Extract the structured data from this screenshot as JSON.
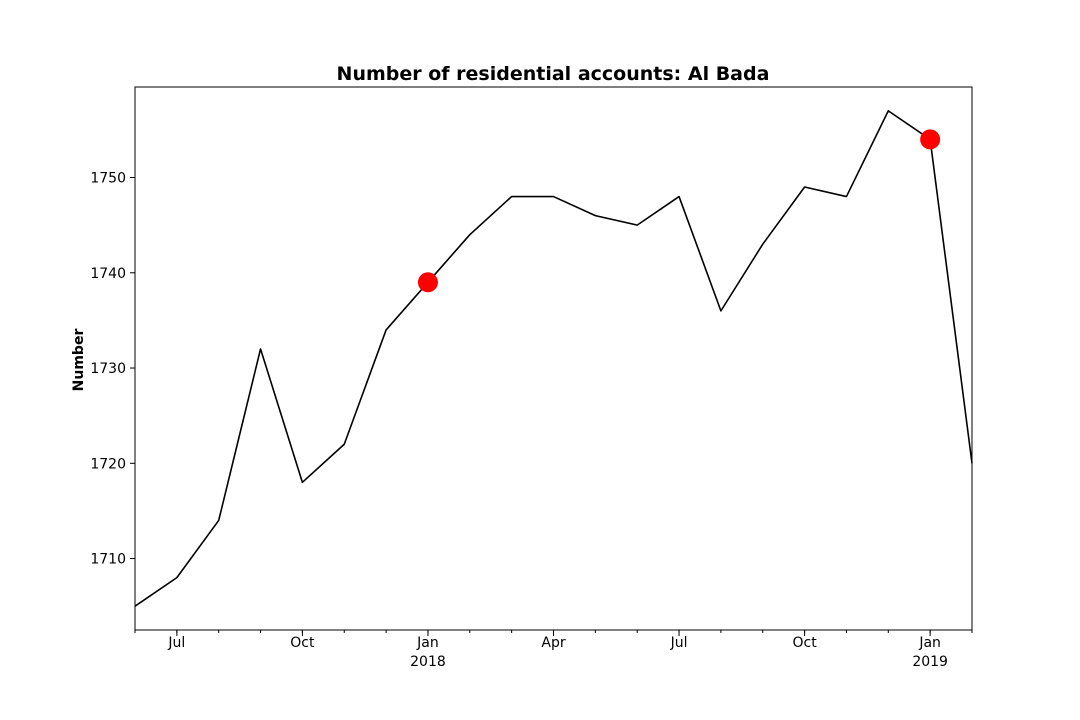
{
  "chart_data": {
    "type": "line",
    "title": "Number of residential accounts: Al Bada",
    "xlabel": "",
    "ylabel": "Number",
    "x": [
      "2017-06",
      "2017-07",
      "2017-08",
      "2017-09",
      "2017-10",
      "2017-11",
      "2017-12",
      "2018-01",
      "2018-02",
      "2018-03",
      "2018-04",
      "2018-05",
      "2018-06",
      "2018-07",
      "2018-08",
      "2018-09",
      "2018-10",
      "2018-11",
      "2018-12",
      "2019-01",
      "2019-02"
    ],
    "series": [
      {
        "values": [
          1705,
          1708,
          1714,
          1732,
          1718,
          1722,
          1734,
          1739,
          1744,
          1748,
          1748,
          1746,
          1745,
          1748,
          1736,
          1743,
          1749,
          1748,
          1757,
          1754,
          1720
        ],
        "color": "#000000"
      }
    ],
    "highlight_points": [
      {
        "x": "2018-01",
        "y": 1739,
        "color": "#ff0000"
      },
      {
        "x": "2019-01",
        "y": 1754,
        "color": "#ff0000"
      }
    ],
    "xlim": [
      "2017-06",
      "2019-02"
    ],
    "ylim": [
      1702.5,
      1759.5
    ],
    "yticks": [
      1710,
      1720,
      1730,
      1740,
      1750
    ],
    "xticks": [
      {
        "x": "2017-07",
        "label": "Jul",
        "sublabel": ""
      },
      {
        "x": "2017-10",
        "label": "Oct",
        "sublabel": ""
      },
      {
        "x": "2018-01",
        "label": "Jan",
        "sublabel": "2018"
      },
      {
        "x": "2018-04",
        "label": "Apr",
        "sublabel": ""
      },
      {
        "x": "2018-07",
        "label": "Jul",
        "sublabel": ""
      },
      {
        "x": "2018-10",
        "label": "Oct",
        "sublabel": ""
      },
      {
        "x": "2019-01",
        "label": "Jan",
        "sublabel": "2019"
      }
    ],
    "grid": false,
    "legend": "none"
  }
}
